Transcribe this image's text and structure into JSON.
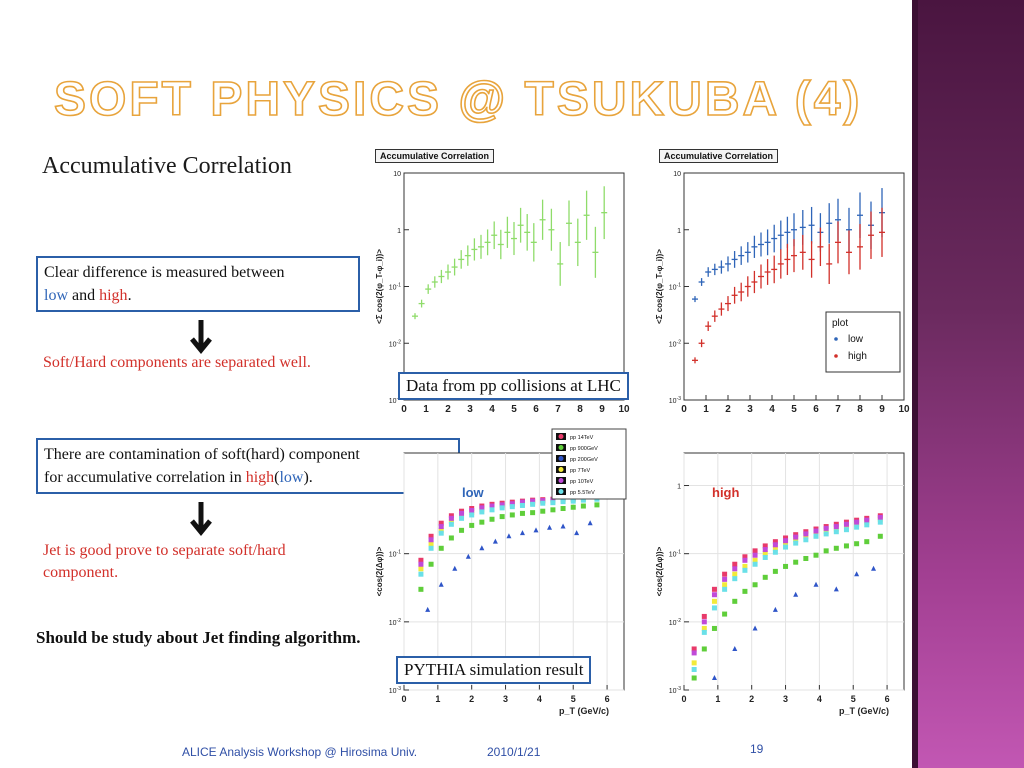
{
  "slide": {
    "title": "Soft Physics @ Tsukuba (4)",
    "heading": "Accumulative Correlation",
    "box1": {
      "line1": "Clear difference is measured between",
      "low": "low",
      "and": " and ",
      "high": "high",
      "end": "."
    },
    "red1": "Soft/Hard components are separated well.",
    "box2": {
      "line1": "There are contamination of soft(hard) component",
      "line2a": "for accumulative correlation in ",
      "high": "high",
      "paren_open": "(",
      "low": "low",
      "paren_close": ")."
    },
    "red2_line1": "Jet is good prove to separate soft/hard",
    "red2_line2": "component.",
    "bold_note": "Should be study about Jet finding algorithm.",
    "caption_data": "Data from pp collisions at LHC",
    "caption_sim": "PYTHIA simulation result"
  },
  "footer": {
    "event": "ALICE Analysis Workshop @ Hirosima Univ.",
    "date": "2010/1/21",
    "page": "19"
  },
  "colors": {
    "accent": "#e8a43c",
    "box_border": "#2b5fa8",
    "low": "#2f65b8",
    "high": "#d2302a",
    "sidebar": "#8a3479"
  },
  "chart_data": [
    {
      "type": "scatter",
      "title": "Accumulative Correlation",
      "ylabel": "<Σ cos(2(φ_T-φ_i))>",
      "yscale": "log",
      "ylim": [
        0.001,
        10
      ],
      "xlim": [
        0,
        10
      ],
      "xticks": [
        "0",
        "1",
        "2",
        "3",
        "4",
        "5",
        "6",
        "7",
        "8",
        "9",
        "10"
      ],
      "yticks": [
        "10^-3",
        "10^-2",
        "10^-1",
        "1",
        "10"
      ],
      "series": [
        {
          "name": "",
          "color": "#8fdc6a",
          "x": [
            0.5,
            0.8,
            1.1,
            1.4,
            1.7,
            2.0,
            2.3,
            2.6,
            2.9,
            3.2,
            3.5,
            3.8,
            4.1,
            4.4,
            4.7,
            5.0,
            5.3,
            5.6,
            5.9,
            6.3,
            6.7,
            7.1,
            7.5,
            7.9,
            8.3,
            8.7,
            9.1
          ],
          "y": [
            0.03,
            0.05,
            0.09,
            0.12,
            0.15,
            0.18,
            0.22,
            0.3,
            0.35,
            0.45,
            0.5,
            0.6,
            0.8,
            0.55,
            0.9,
            0.7,
            1.2,
            0.9,
            0.6,
            1.5,
            1.0,
            0.25,
            1.3,
            0.6,
            1.8,
            0.4,
            2.0
          ]
        }
      ]
    },
    {
      "type": "scatter",
      "title": "Accumulative Correlation",
      "ylabel": "<Σ cos(2(φ_T-φ_i))>",
      "yscale": "log",
      "ylim": [
        0.001,
        10
      ],
      "xlim": [
        0,
        10
      ],
      "xticks": [
        "0",
        "1",
        "2",
        "3",
        "4",
        "5",
        "6",
        "7",
        "8",
        "9",
        "10"
      ],
      "yticks": [
        "10^-3",
        "10^-2",
        "10^-1",
        "1",
        "10"
      ],
      "legend": {
        "title": "plot",
        "position": "lower-right"
      },
      "series": [
        {
          "name": "low",
          "color": "#2f65b8",
          "x": [
            0.5,
            0.8,
            1.1,
            1.4,
            1.7,
            2.0,
            2.3,
            2.6,
            2.9,
            3.2,
            3.5,
            3.8,
            4.1,
            4.4,
            4.7,
            5.0,
            5.4,
            5.8,
            6.2,
            6.6,
            7.0,
            7.5,
            8.0,
            8.5,
            9.0
          ],
          "y": [
            0.06,
            0.12,
            0.18,
            0.2,
            0.22,
            0.25,
            0.3,
            0.35,
            0.4,
            0.5,
            0.55,
            0.6,
            0.7,
            0.8,
            0.9,
            1.0,
            1.1,
            1.2,
            0.9,
            1.3,
            1.5,
            1.0,
            1.8,
            1.2,
            2.0
          ]
        },
        {
          "name": "high",
          "color": "#d2302a",
          "x": [
            0.5,
            0.8,
            1.1,
            1.4,
            1.7,
            2.0,
            2.3,
            2.6,
            2.9,
            3.2,
            3.5,
            3.8,
            4.1,
            4.4,
            4.7,
            5.0,
            5.4,
            5.8,
            6.2,
            6.6,
            7.0,
            7.5,
            8.0,
            8.5,
            9.0
          ],
          "y": [
            0.005,
            0.01,
            0.02,
            0.03,
            0.04,
            0.05,
            0.07,
            0.08,
            0.1,
            0.12,
            0.15,
            0.18,
            0.2,
            0.25,
            0.3,
            0.35,
            0.4,
            0.3,
            0.5,
            0.25,
            0.6,
            0.4,
            0.5,
            0.8,
            0.9
          ]
        }
      ]
    },
    {
      "type": "scatter",
      "panel_label": "low",
      "ylabel": "<cos(2(Δφ))>",
      "xlabel": "p_T (GeV/c)",
      "yscale": "log",
      "ylim": [
        0.001,
        3
      ],
      "xlim": [
        0,
        6.5
      ],
      "xticks": [
        "0",
        "1",
        "2",
        "3",
        "4",
        "5",
        "6"
      ],
      "yticks": [
        "10^-3",
        "10^-2",
        "10^-1"
      ],
      "legend": {
        "position": "top-right",
        "entries": [
          "pp 14TeV",
          "pp 900GeV",
          "pp 200GeV",
          "pp 7TeV",
          "pp 10TeV",
          "pp 5.5TeV"
        ]
      },
      "series": [
        {
          "name": "pp 14TeV",
          "color": "#e83a6a",
          "x": [
            0.5,
            0.8,
            1.1,
            1.4,
            1.7,
            2.0,
            2.3,
            2.6,
            2.9,
            3.2,
            3.5,
            3.8,
            4.1,
            4.4,
            4.7,
            5.0,
            5.3,
            5.7
          ],
          "y": [
            0.08,
            0.18,
            0.28,
            0.36,
            0.42,
            0.46,
            0.5,
            0.53,
            0.55,
            0.57,
            0.59,
            0.61,
            0.62,
            0.63,
            0.65,
            0.66,
            0.7,
            0.72
          ]
        },
        {
          "name": "pp 900GeV",
          "color": "#5fce3a",
          "x": [
            0.5,
            0.8,
            1.1,
            1.4,
            1.7,
            2.0,
            2.3,
            2.6,
            2.9,
            3.2,
            3.5,
            3.8,
            4.1,
            4.4,
            4.7,
            5.0,
            5.3,
            5.7
          ],
          "y": [
            0.03,
            0.07,
            0.12,
            0.17,
            0.22,
            0.26,
            0.29,
            0.32,
            0.35,
            0.37,
            0.39,
            0.4,
            0.42,
            0.44,
            0.46,
            0.48,
            0.5,
            0.52
          ]
        },
        {
          "name": "pp 200GeV",
          "color": "#2f55c8",
          "x": [
            0.7,
            1.1,
            1.5,
            1.9,
            2.3,
            2.7,
            3.1,
            3.5,
            3.9,
            4.3,
            4.7,
            5.1,
            5.5
          ],
          "y": [
            0.015,
            0.035,
            0.06,
            0.09,
            0.12,
            0.15,
            0.18,
            0.2,
            0.22,
            0.24,
            0.25,
            0.2,
            0.28
          ]
        },
        {
          "name": "pp 7TeV",
          "color": "#f2ea3a",
          "x": [
            0.5,
            0.8,
            1.1,
            1.4,
            1.7,
            2.0,
            2.3,
            2.6,
            2.9,
            3.2,
            3.5,
            3.8,
            4.1,
            4.4,
            4.7,
            5.0,
            5.3,
            5.7
          ],
          "y": [
            0.06,
            0.14,
            0.22,
            0.3,
            0.36,
            0.4,
            0.44,
            0.47,
            0.5,
            0.52,
            0.54,
            0.56,
            0.58,
            0.59,
            0.61,
            0.62,
            0.64,
            0.66
          ]
        },
        {
          "name": "pp 10TeV",
          "color": "#c04ad8",
          "x": [
            0.5,
            0.8,
            1.1,
            1.4,
            1.7,
            2.0,
            2.3,
            2.6,
            2.9,
            3.2,
            3.5,
            3.8,
            4.1,
            4.4,
            4.7,
            5.0,
            5.3,
            5.7
          ],
          "y": [
            0.07,
            0.16,
            0.25,
            0.33,
            0.39,
            0.43,
            0.47,
            0.5,
            0.52,
            0.54,
            0.57,
            0.59,
            0.6,
            0.61,
            0.63,
            0.64,
            0.67,
            0.69
          ]
        },
        {
          "name": "pp 5.5TeV",
          "color": "#6ae0e8",
          "x": [
            0.5,
            0.8,
            1.1,
            1.4,
            1.7,
            2.0,
            2.3,
            2.6,
            2.9,
            3.2,
            3.5,
            3.8,
            4.1,
            4.4,
            4.7,
            5.0,
            5.3,
            5.7
          ],
          "y": [
            0.05,
            0.12,
            0.2,
            0.27,
            0.33,
            0.37,
            0.41,
            0.44,
            0.47,
            0.49,
            0.51,
            0.53,
            0.55,
            0.56,
            0.58,
            0.59,
            0.61,
            0.63
          ]
        }
      ]
    },
    {
      "type": "scatter",
      "panel_label": "high",
      "ylabel": "<cos(2(Δφ))>",
      "xlabel": "p_T (GeV/c)",
      "yscale": "log",
      "ylim": [
        0.001,
        3
      ],
      "xlim": [
        0,
        6.5
      ],
      "xticks": [
        "0",
        "1",
        "2",
        "3",
        "4",
        "5",
        "6"
      ],
      "yticks": [
        "10^-3",
        "10^-2",
        "10^-1",
        "1"
      ],
      "series": [
        {
          "name": "pp 14TeV",
          "color": "#e83a6a",
          "x": [
            0.3,
            0.6,
            0.9,
            1.2,
            1.5,
            1.8,
            2.1,
            2.4,
            2.7,
            3.0,
            3.3,
            3.6,
            3.9,
            4.2,
            4.5,
            4.8,
            5.1,
            5.4,
            5.8
          ],
          "y": [
            0.004,
            0.012,
            0.03,
            0.05,
            0.07,
            0.09,
            0.11,
            0.13,
            0.15,
            0.17,
            0.19,
            0.21,
            0.23,
            0.25,
            0.27,
            0.29,
            0.31,
            0.33,
            0.36
          ]
        },
        {
          "name": "pp 900GeV",
          "color": "#5fce3a",
          "x": [
            0.3,
            0.6,
            0.9,
            1.2,
            1.5,
            1.8,
            2.1,
            2.4,
            2.7,
            3.0,
            3.3,
            3.6,
            3.9,
            4.2,
            4.5,
            4.8,
            5.1,
            5.4,
            5.8
          ],
          "y": [
            0.0015,
            0.004,
            0.008,
            0.013,
            0.02,
            0.028,
            0.035,
            0.045,
            0.055,
            0.065,
            0.075,
            0.085,
            0.095,
            0.11,
            0.12,
            0.13,
            0.14,
            0.15,
            0.18
          ]
        },
        {
          "name": "pp 200GeV",
          "color": "#2f55c8",
          "x": [
            0.9,
            1.5,
            2.1,
            2.7,
            3.3,
            3.9,
            4.5,
            5.1,
            5.6
          ],
          "y": [
            0.0015,
            0.004,
            0.008,
            0.015,
            0.025,
            0.035,
            0.03,
            0.05,
            0.06
          ]
        },
        {
          "name": "pp 7TeV",
          "color": "#f2ea3a",
          "x": [
            0.3,
            0.6,
            0.9,
            1.2,
            1.5,
            1.8,
            2.1,
            2.4,
            2.7,
            3.0,
            3.3,
            3.6,
            3.9,
            4.2,
            4.5,
            4.8,
            5.1,
            5.4,
            5.8
          ],
          "y": [
            0.0025,
            0.008,
            0.02,
            0.035,
            0.05,
            0.065,
            0.08,
            0.1,
            0.12,
            0.14,
            0.16,
            0.18,
            0.2,
            0.21,
            0.23,
            0.25,
            0.27,
            0.29,
            0.32
          ]
        },
        {
          "name": "pp 10TeV",
          "color": "#c04ad8",
          "x": [
            0.3,
            0.6,
            0.9,
            1.2,
            1.5,
            1.8,
            2.1,
            2.4,
            2.7,
            3.0,
            3.3,
            3.6,
            3.9,
            4.2,
            4.5,
            4.8,
            5.1,
            5.4,
            5.8
          ],
          "y": [
            0.0035,
            0.01,
            0.025,
            0.042,
            0.06,
            0.08,
            0.095,
            0.115,
            0.135,
            0.155,
            0.175,
            0.195,
            0.215,
            0.235,
            0.25,
            0.27,
            0.29,
            0.31,
            0.34
          ]
        },
        {
          "name": "pp 5.5TeV",
          "color": "#6ae0e8",
          "x": [
            0.3,
            0.6,
            0.9,
            1.2,
            1.5,
            1.8,
            2.1,
            2.4,
            2.7,
            3.0,
            3.3,
            3.6,
            3.9,
            4.2,
            4.5,
            4.8,
            5.1,
            5.4,
            5.8
          ],
          "y": [
            0.002,
            0.007,
            0.016,
            0.03,
            0.043,
            0.057,
            0.07,
            0.088,
            0.105,
            0.125,
            0.143,
            0.16,
            0.18,
            0.195,
            0.21,
            0.225,
            0.245,
            0.265,
            0.29
          ]
        }
      ]
    }
  ]
}
